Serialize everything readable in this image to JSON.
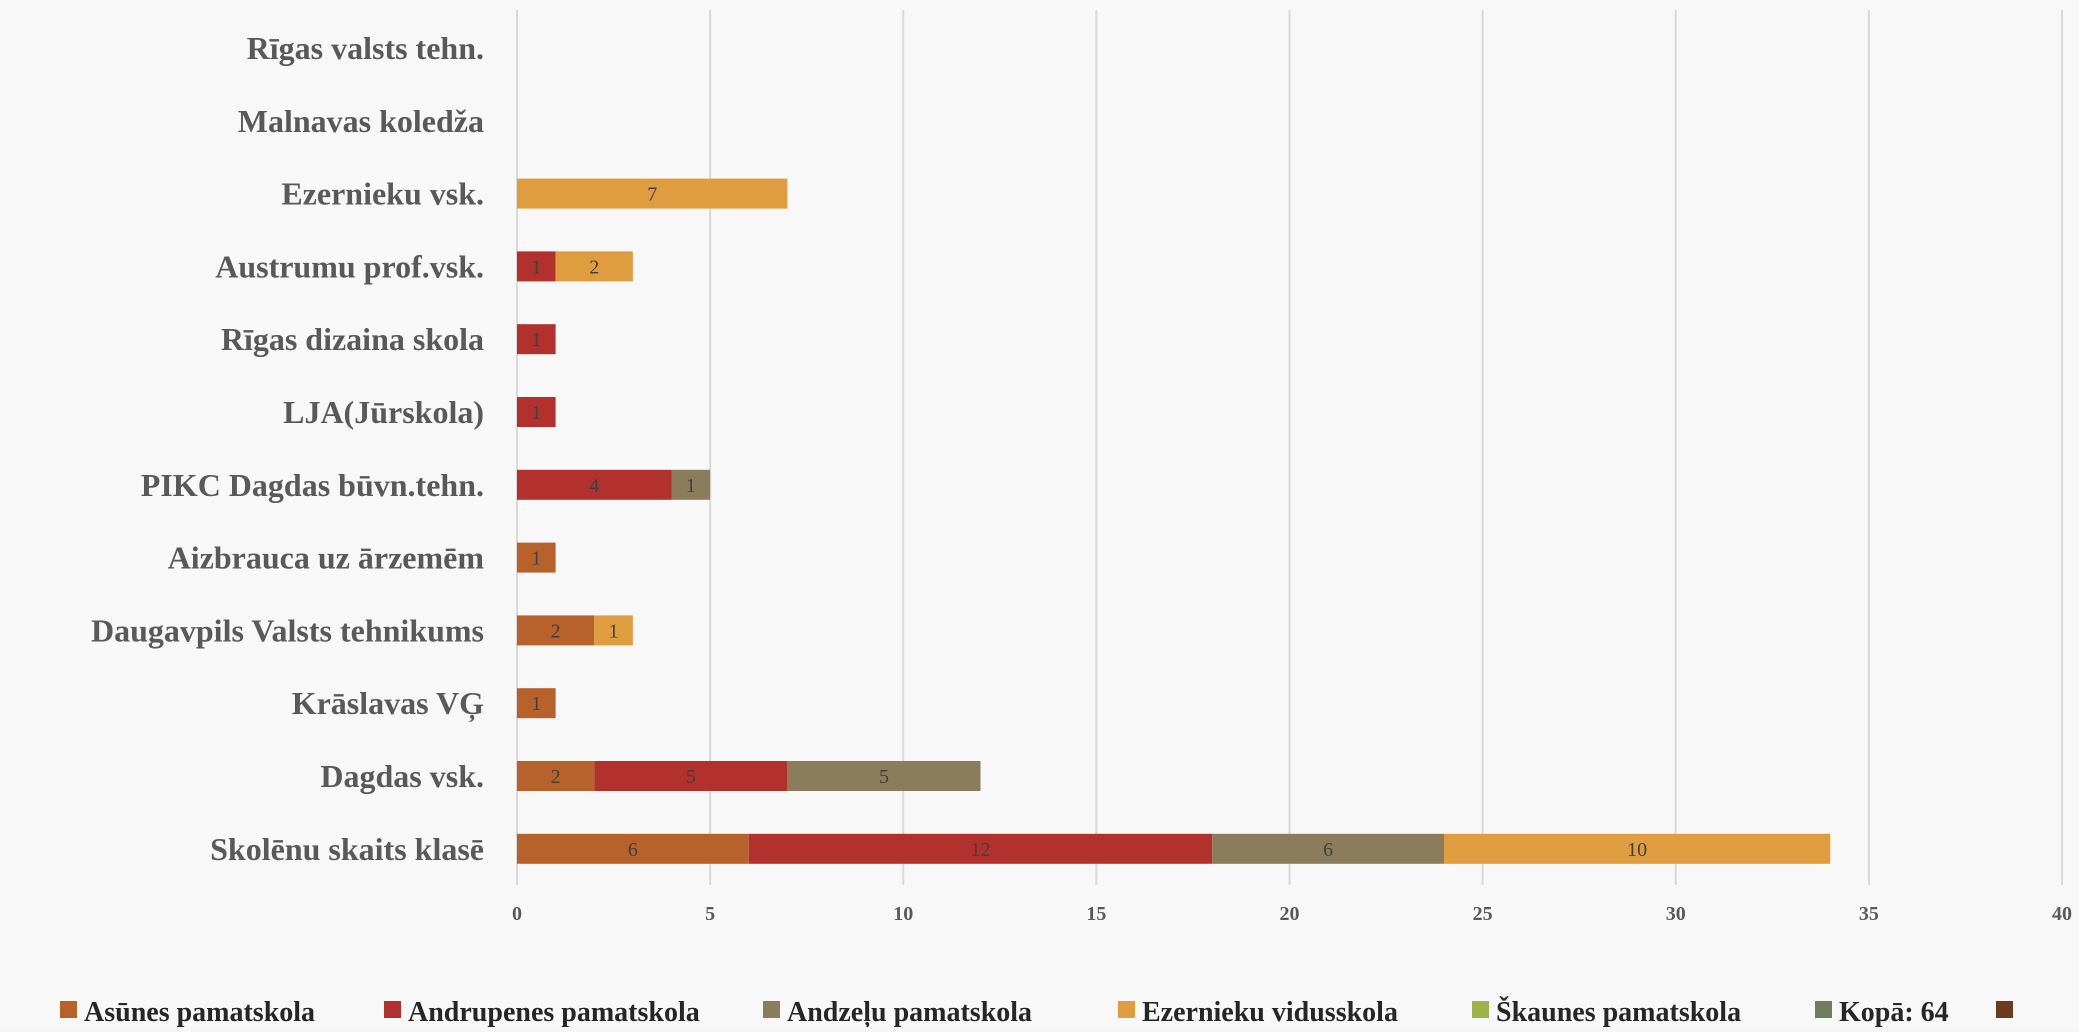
{
  "chart_data": {
    "type": "bar",
    "orientation": "horizontal",
    "stacked": true,
    "title": "",
    "xlabel": "",
    "ylabel": "",
    "xlim": [
      0,
      40
    ],
    "x_ticks": [
      0,
      5,
      10,
      15,
      20,
      25,
      30,
      35,
      40
    ],
    "grid": true,
    "legend_position": "bottom",
    "categories": [
      "Skolēnu  skaits klasē",
      "Dagdas  vsk.",
      "Krāslavas VĢ",
      "Daugavpils  Valsts tehnikums",
      "Aizbrauca uz ārzemēm",
      "PIKC Dagdas būvn.tehn.",
      "LJA(Jūrskola)",
      "Rīgas  dizaina skola",
      "Austrumu  prof.vsk.",
      "Ezernieku vsk.",
      "Malnavas  koledža",
      "Rīgas valsts  tehn."
    ],
    "series": [
      {
        "name": "Asūnes pamatskola",
        "color": "#b8622b",
        "values": [
          6,
          2,
          1,
          2,
          1,
          0,
          0,
          0,
          0,
          0,
          0,
          0
        ]
      },
      {
        "name": "Andrupenes  pamatskola",
        "color": "#b3312d",
        "values": [
          12,
          5,
          0,
          0,
          0,
          4,
          1,
          1,
          1,
          0,
          0,
          0
        ]
      },
      {
        "name": "Andzeļu pamatskola",
        "color": "#8b7d5c",
        "values": [
          6,
          5,
          0,
          0,
          0,
          1,
          0,
          0,
          0,
          0,
          0,
          0
        ]
      },
      {
        "name": "Ezernieku vidusskola",
        "color": "#e09d40",
        "values": [
          10,
          0,
          0,
          1,
          0,
          0,
          0,
          0,
          2,
          7,
          0,
          0
        ]
      },
      {
        "name": "Škaunes  pamatskola",
        "color": "#9cb34a",
        "values": [
          0,
          0,
          0,
          0,
          0,
          0,
          0,
          0,
          0,
          0,
          0,
          0
        ]
      },
      {
        "name": "Kopā:  64",
        "color": "#6e7f5f",
        "values": [
          0,
          0,
          0,
          0,
          0,
          0,
          0,
          0,
          0,
          0,
          0,
          0
        ]
      },
      {
        "name": "",
        "color": "#6b3a1f",
        "values": [
          0,
          0,
          0,
          0,
          0,
          0,
          0,
          0,
          0,
          0,
          0,
          0
        ]
      }
    ]
  }
}
